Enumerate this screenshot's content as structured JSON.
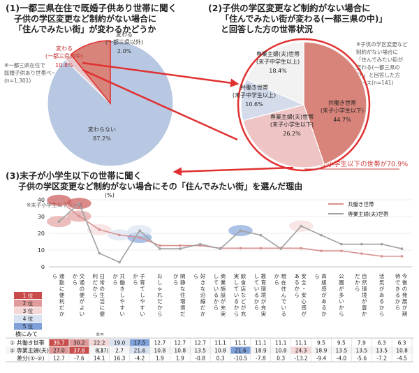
{
  "sections": {
    "s1_title": [
      "(1)一都三県在住で既婚子供あり世帯に聞く",
      "子供の学区変更など制約がない場合に",
      "「住んでみたい街」が変わるかどうか"
    ],
    "s1_note": [
      "※一都三県在住で",
      "既婚子供あり世帯ベース",
      "(n=1,301)"
    ],
    "s2_title": [
      "(2)子供の学区変更など制約がない場合に",
      "「住んでみたい街が変わる(一都三県の中)」",
      "と回答した方の世帯状況"
    ],
    "s2_note": [
      "※子供の学区変更など",
      "制約がない場合に",
      "「住んでみたい街が",
      "変わる(一都三県の",
      "中)」と回答した方",
      "ベース(n=141)"
    ],
    "s3_title": [
      "(3)末子が小学生以下の世帯に聞く",
      "子供の学区変更など制約がない場合にその「住んでみたい街」を選んだ理由"
    ],
    "s3_note": "※末子小学生以下ベース",
    "callout": "末子が小学生以下の世帯が70.9%"
  },
  "chart_data": [
    {
      "type": "pie",
      "slices": [
        {
          "label": [
            "変わる",
            "(一都三県の中)"
          ],
          "value": 10.8,
          "value_label": "10.8%",
          "color": "#d9847a"
        },
        {
          "label": [
            "変わる",
            "(一都三県以外)"
          ],
          "value": 2.0,
          "value_label": "2.0%",
          "color": "#e8c8cc"
        },
        {
          "label": [
            "変わらない"
          ],
          "value": 87.2,
          "value_label": "87.2%",
          "color": "#b8c8e2"
        }
      ]
    },
    {
      "type": "pie",
      "slices": [
        {
          "label": [
            "共働き世帯",
            "(末子小学生以下)"
          ],
          "value": 44.7,
          "value_label": "44.7%",
          "color": "#d9847a"
        },
        {
          "label": [
            "専業主婦(夫)世帯",
            "(末子小学生以下)"
          ],
          "value": 26.2,
          "value_label": "26.2%",
          "color": "#efc4c4"
        },
        {
          "label": [
            "共働き世帯",
            "(末子中学生以上)"
          ],
          "value": 10.6,
          "value_label": "10.6%",
          "color": "#d4dcec"
        },
        {
          "label": [
            "専業主婦(夫)世帯",
            "(末子中学生以上)"
          ],
          "value": 18.4,
          "value_label": "18.4%",
          "color": "#f2f2f2"
        }
      ]
    },
    {
      "type": "line",
      "ylabel": "(%)",
      "ylim": [
        0,
        40
      ],
      "yticks": [
        0,
        10,
        20,
        30,
        40
      ],
      "categories": [
        "通勤に便利だから",
        "交通の便がよいから",
        "日常の生活に便利だから",
        "共働きしやすいから",
        "子育てしやすいから",
        "おしゃれだから",
        "閑静な住環境だから",
        "好きな沿線だから",
        "商業施設が充実しているから",
        "飲食店などが充実しているから",
        "教育環境が充実しているから",
        "現在住んでいるから",
        "安全・安心感があるから",
        "高級感があるから",
        "公園が多いから",
        "自然環境が豊かだから",
        "活気があるから",
        "今後の発展が期待できるから"
      ],
      "series": [
        {
          "name": "共働き世帯",
          "n": "(63)",
          "color": "#d89090",
          "values": [
            39.7,
            30.2,
            22.2,
            19.0,
            17.5,
            12.7,
            12.7,
            12.7,
            11.1,
            11.1,
            11.1,
            11.1,
            11.1,
            9.5,
            9.5,
            7.9,
            6.3,
            6.3
          ]
        },
        {
          "name": "専業主婦(夫)世帯",
          "n": "(37)",
          "color": "#a0a0a0",
          "values": [
            27.0,
            37.8,
            8.1,
            2.7,
            21.6,
            10.8,
            10.8,
            13.5,
            10.8,
            21.6,
            18.9,
            10.8,
            24.3,
            18.9,
            13.5,
            13.5,
            13.5,
            10.8
          ]
        }
      ],
      "diff_label": "差分(①-②)",
      "diff": [
        "12.7",
        "-7.6",
        "14.1",
        "16.3",
        "-4.2",
        "1.9",
        "1.9",
        "-0.8",
        "0.3",
        "-10.5",
        "-7.8",
        "0.3",
        "-13.2",
        "-9.4",
        "-4.0",
        "-5.6",
        "-7.2",
        "-4.5"
      ],
      "n_label": "n=",
      "row_header": "横にみて",
      "rank_legend": [
        "1 位",
        "2 位",
        "3 位",
        "4 位",
        "5 位"
      ],
      "rank_colors": [
        "#c84c4c",
        "#e09a9a",
        "#f4d8d8",
        "#d8e2f0",
        "#7fa0d8"
      ],
      "row_labels": [
        "①",
        "②"
      ],
      "highlight_s1": [
        1,
        2,
        3,
        4,
        5,
        0,
        0,
        0,
        0,
        0,
        0,
        0,
        0,
        0,
        0,
        0,
        0,
        0
      ],
      "highlight_s2": [
        1,
        0,
        0,
        0,
        2,
        0,
        0,
        0,
        0,
        0,
        0,
        0,
        0,
        0,
        0,
        0,
        0,
        0
      ],
      "highlight_s2_b": [
        2,
        1,
        0,
        0,
        4,
        0,
        0,
        0,
        0,
        4,
        5,
        0,
        3,
        5,
        0,
        0,
        0,
        0
      ]
    }
  ]
}
